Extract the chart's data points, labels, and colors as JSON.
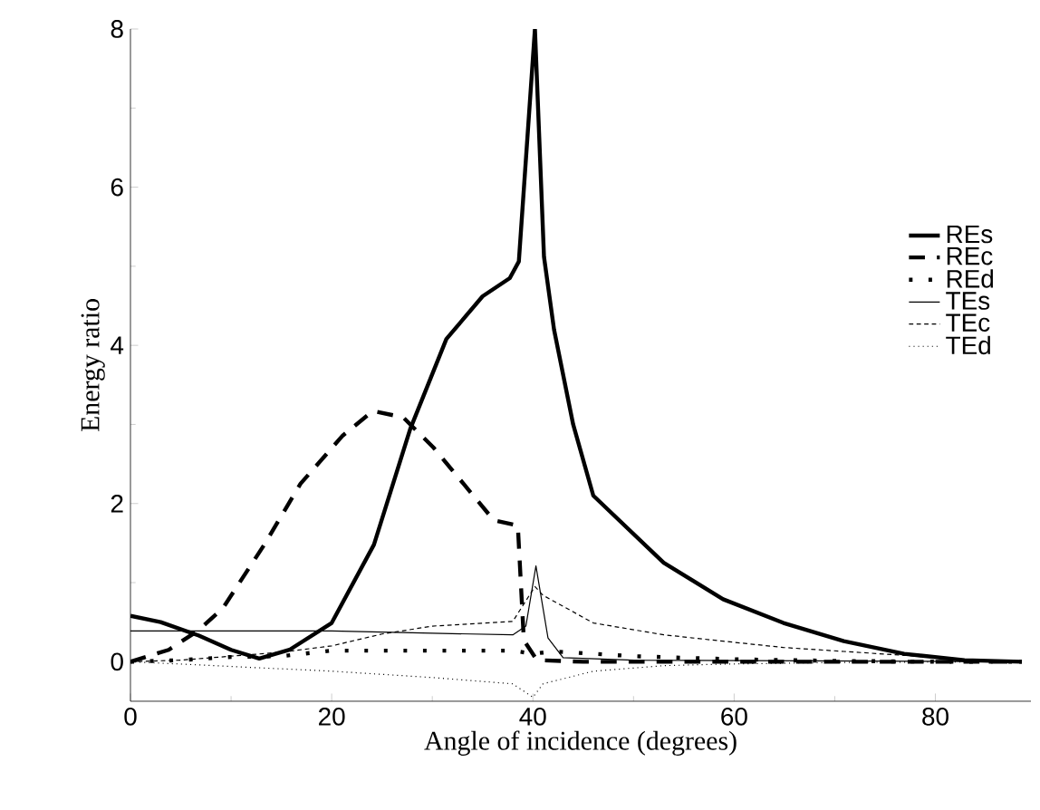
{
  "chart_data": {
    "type": "line",
    "xlabel": "Angle of incidence (degrees)",
    "ylabel": "Energy ratio",
    "xlim": [
      0,
      89.5
    ],
    "ylim": [
      -0.5,
      8
    ],
    "xticks": [
      0,
      20,
      40,
      60,
      80
    ],
    "yticks": [
      0,
      2,
      4,
      6,
      8
    ],
    "grid": false,
    "legend": "right",
    "series": [
      {
        "name": "REs",
        "color": "#000000",
        "line_style": "solid",
        "x": [
          0,
          3,
          6.8,
          10,
          12.8,
          15.8,
          20,
          24.2,
          27.8,
          31.4,
          35,
          37.7,
          38.6,
          40.2,
          41.1,
          42.1,
          44,
          46,
          53,
          58.9,
          64.9,
          70.9,
          76.9,
          82.9,
          88.6
        ],
        "values": [
          0.58,
          0.5,
          0.33,
          0.15,
          0.04,
          0.15,
          0.49,
          1.48,
          2.94,
          4.08,
          4.62,
          4.85,
          5.06,
          8.0,
          5.12,
          4.2,
          3.0,
          2.1,
          1.25,
          0.79,
          0.49,
          0.26,
          0.1,
          0.02,
          0
        ]
      },
      {
        "name": "REc",
        "color": "#000000",
        "line_style": "dashed",
        "x": [
          0,
          3.8,
          6.8,
          9.2,
          13.3,
          16.9,
          21.1,
          24.1,
          27.1,
          30.1,
          33.1,
          36.1,
          38.5,
          39.1,
          40.4,
          45,
          60,
          88.6
        ],
        "values": [
          0,
          0.15,
          0.4,
          0.68,
          1.48,
          2.25,
          2.86,
          3.17,
          3.09,
          2.71,
          2.25,
          1.79,
          1.72,
          0.27,
          0.02,
          0,
          0,
          0
        ]
      },
      {
        "name": "REd",
        "color": "#000000",
        "line_style": "dotted",
        "x": [
          0,
          5,
          10,
          15,
          20,
          30,
          38,
          40,
          42,
          50,
          60,
          70,
          80,
          88.6
        ],
        "values": [
          0,
          0.02,
          0.06,
          0.07,
          0.14,
          0.14,
          0.14,
          0.1,
          0.13,
          0.07,
          0.03,
          0.01,
          0,
          0
        ]
      },
      {
        "name": "TEs",
        "color": "#000000",
        "line_style": "solid",
        "x": [
          0,
          20,
          30,
          38,
          39.3,
          40.3,
          41.5,
          43,
          50,
          88.6
        ],
        "values": [
          0.39,
          0.39,
          0.36,
          0.34,
          0.45,
          1.21,
          0.3,
          0.05,
          0.02,
          0
        ]
      },
      {
        "name": "TEc",
        "color": "#000000",
        "line_style": "dashed",
        "x": [
          0,
          5,
          10,
          15,
          20,
          25,
          30,
          38,
          40.2,
          41,
          46,
          53,
          58.9,
          64.9,
          70.9,
          76.9,
          82.9,
          88.6
        ],
        "values": [
          0,
          0.02,
          0.07,
          0.12,
          0.2,
          0.35,
          0.45,
          0.51,
          0.95,
          0.84,
          0.49,
          0.34,
          0.26,
          0.18,
          0.13,
          0.08,
          0.03,
          0
        ]
      },
      {
        "name": "TEd",
        "color": "#000000",
        "line_style": "dotted",
        "x": [
          0,
          10,
          20,
          30,
          38,
          40,
          41,
          46,
          53,
          59,
          70,
          88.6
        ],
        "values": [
          0,
          -0.06,
          -0.12,
          -0.2,
          -0.28,
          -0.45,
          -0.28,
          -0.12,
          -0.05,
          -0.03,
          -0.01,
          0
        ]
      }
    ]
  }
}
